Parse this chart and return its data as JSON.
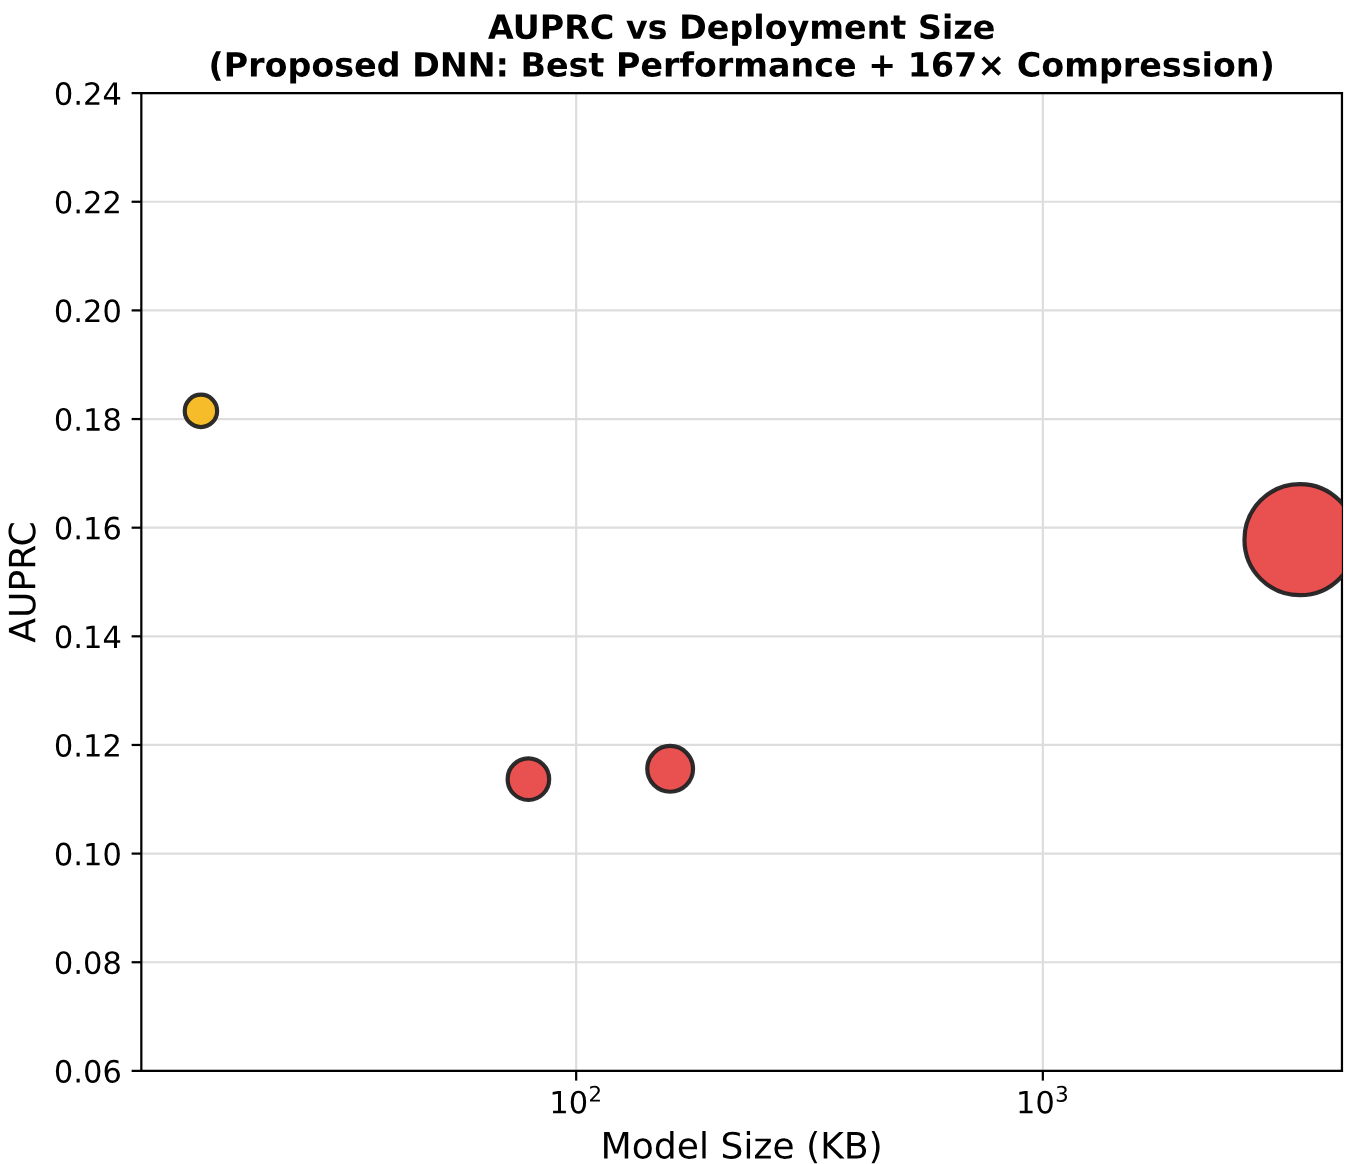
{
  "chart_data": {
    "type": "bubble",
    "title": "AUPRC vs Deployment Size\n(Proposed DNN: Best Performance + 167× Compression)",
    "xlabel": "Model Size (KB)",
    "ylabel": "AUPRC",
    "log": "x",
    "x": [
      15.7,
      79,
      159,
      3557
    ],
    "values": [
      0.1815,
      0.1137,
      0.1156,
      0.1578
    ],
    "sizes": [
      0.085,
      0.14,
      0.17,
      1
    ],
    "colors": [
      "#f5b81e",
      "#e84848",
      "#e84848",
      "#e84848"
    ],
    "xlim": [
      11.7,
      4375
    ],
    "xticks": [
      {
        "value": 100,
        "label": "10$^{2}$"
      },
      {
        "value": 1000,
        "label": "10$^{3}$"
      }
    ],
    "ylim": [
      0.06,
      0.24
    ],
    "yticks": [
      {
        "value": 0.06,
        "label": "0.06"
      },
      {
        "value": 0.08,
        "label": "0.08"
      },
      {
        "value": 0.1,
        "label": "0.10"
      },
      {
        "value": 0.12,
        "label": "0.12"
      },
      {
        "value": 0.14,
        "label": "0.14"
      },
      {
        "value": 0.16,
        "label": "0.16"
      },
      {
        "value": 0.18,
        "label": "0.18"
      },
      {
        "value": 0.2,
        "label": "0.20"
      },
      {
        "value": 0.22,
        "label": "0.22"
      },
      {
        "value": 0.24,
        "label": "0.24"
      }
    ],
    "grid": true
  }
}
